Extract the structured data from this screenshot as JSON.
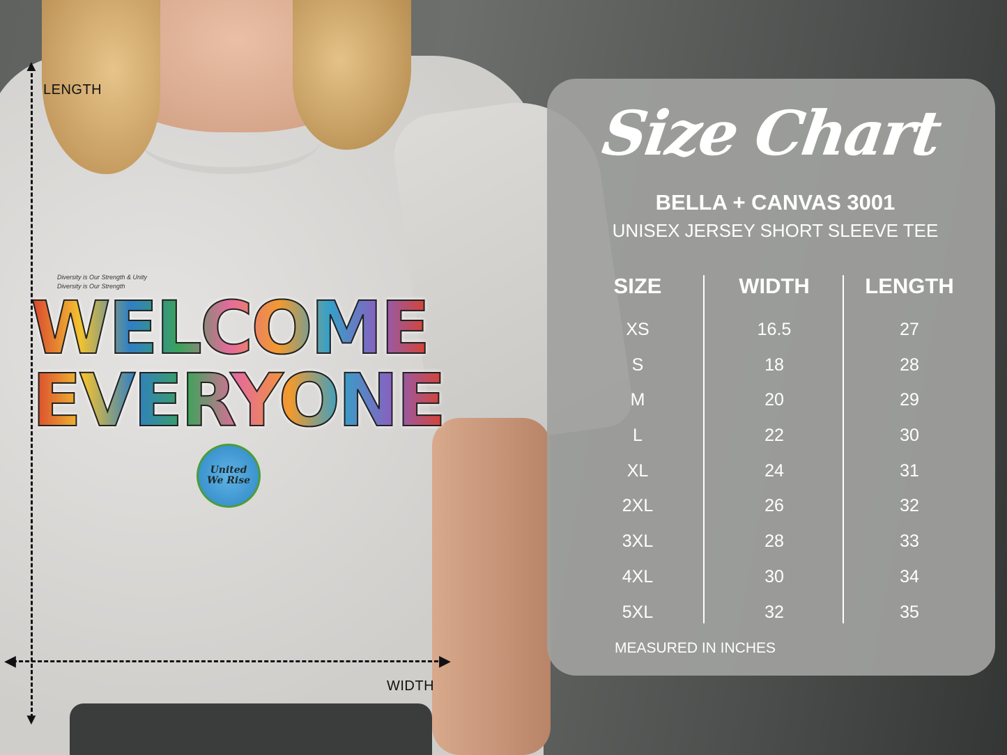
{
  "measure_guides": {
    "length_label": "LENGTH",
    "width_label": "WIDTH"
  },
  "shirt_design": {
    "line1": "WELCOME",
    "line2": "EVERYONE",
    "globe_text_1": "United",
    "globe_text_2": "We Rise",
    "small_text_1": "Diversity is Our Strength",
    "small_text_2": "Diversity is Our Strength & Unity"
  },
  "size_chart": {
    "title": "Size Chart",
    "brand": "BELLA + CANVAS 3001",
    "product": "UNISEX JERSEY SHORT SLEEVE TEE",
    "columns": [
      "SIZE",
      "WIDTH",
      "LENGTH"
    ],
    "sizes": [
      "XS",
      "S",
      "M",
      "L",
      "XL",
      "2XL",
      "3XL",
      "4XL",
      "5XL"
    ],
    "widths": [
      "16.5",
      "18",
      "20",
      "22",
      "24",
      "26",
      "28",
      "30",
      "32"
    ],
    "lengths": [
      "27",
      "28",
      "29",
      "30",
      "31",
      "32",
      "33",
      "34",
      "35"
    ],
    "footnote": "MEASURED IN INCHES"
  },
  "colors": {
    "panel": "#a0a19f",
    "text": "#ffffff",
    "background": "#5f625f",
    "shirt": "#d9d8d5"
  }
}
